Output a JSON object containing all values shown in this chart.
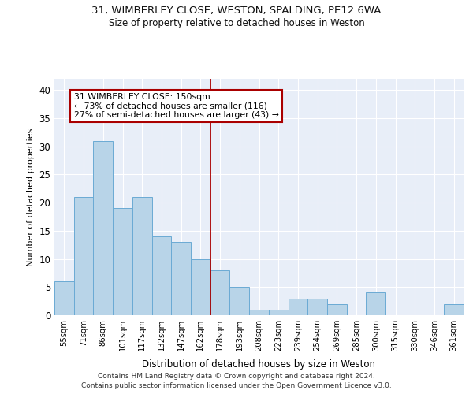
{
  "title1": "31, WIMBERLEY CLOSE, WESTON, SPALDING, PE12 6WA",
  "title2": "Size of property relative to detached houses in Weston",
  "xlabel": "Distribution of detached houses by size in Weston",
  "ylabel": "Number of detached properties",
  "categories": [
    "55sqm",
    "71sqm",
    "86sqm",
    "101sqm",
    "117sqm",
    "132sqm",
    "147sqm",
    "162sqm",
    "178sqm",
    "193sqm",
    "208sqm",
    "223sqm",
    "239sqm",
    "254sqm",
    "269sqm",
    "285sqm",
    "300sqm",
    "315sqm",
    "330sqm",
    "346sqm",
    "361sqm"
  ],
  "values": [
    6,
    21,
    31,
    19,
    21,
    14,
    13,
    10,
    8,
    5,
    1,
    1,
    3,
    3,
    2,
    0,
    4,
    0,
    0,
    0,
    2
  ],
  "bar_color": "#b8d4e8",
  "bar_edge_color": "#6aaad4",
  "background_color": "#e8eef8",
  "red_line_x": 7.5,
  "annotation_text": "31 WIMBERLEY CLOSE: 150sqm\n← 73% of detached houses are smaller (116)\n27% of semi-detached houses are larger (43) →",
  "ylim": [
    0,
    42
  ],
  "yticks": [
    0,
    5,
    10,
    15,
    20,
    25,
    30,
    35,
    40
  ],
  "footer1": "Contains HM Land Registry data © Crown copyright and database right 2024.",
  "footer2": "Contains public sector information licensed under the Open Government Licence v3.0."
}
